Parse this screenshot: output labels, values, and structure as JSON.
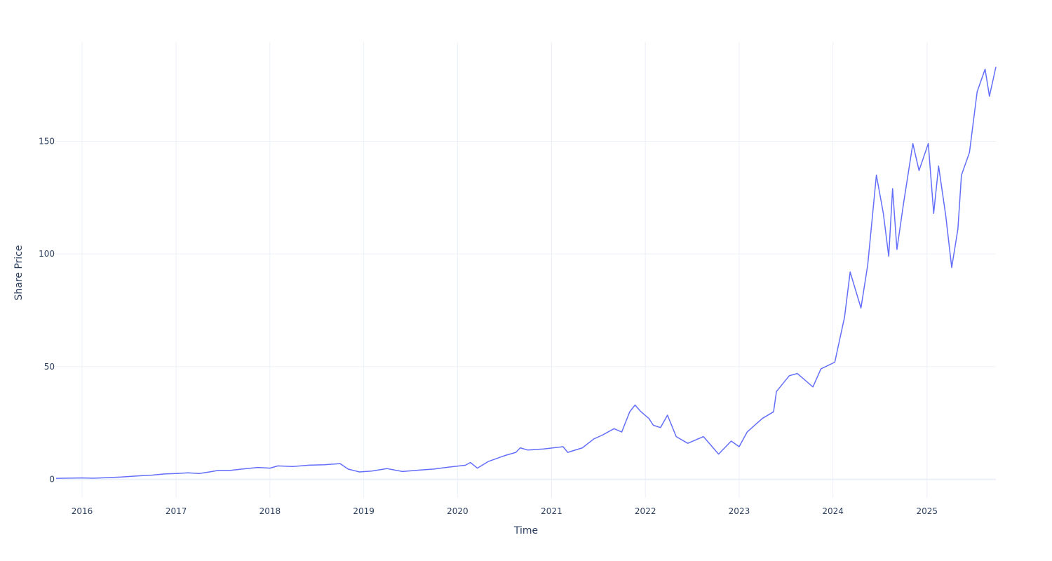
{
  "chart_data": {
    "type": "line",
    "title": "",
    "xlabel": "Time",
    "ylabel": "Share Price",
    "x_type": "date",
    "xlim": [
      "2015-09-22",
      "2025-09-26"
    ],
    "ylim": [
      -8.2,
      194
    ],
    "x_ticks": [
      "2016",
      "2017",
      "2018",
      "2019",
      "2020",
      "2021",
      "2022",
      "2023",
      "2024",
      "2025"
    ],
    "y_ticks": [
      0,
      50,
      100,
      150
    ],
    "grid": true,
    "legend": "none",
    "series": [
      {
        "color": "#636efa",
        "points": [
          [
            "2015-09-22",
            0.48
          ],
          [
            "2015-11-01",
            0.55
          ],
          [
            "2016-01-01",
            0.68
          ],
          [
            "2016-02-15",
            0.55
          ],
          [
            "2016-04-01",
            0.75
          ],
          [
            "2016-06-01",
            1.05
          ],
          [
            "2016-08-01",
            1.5
          ],
          [
            "2016-10-01",
            1.9
          ],
          [
            "2016-11-15",
            2.4
          ],
          [
            "2017-01-01",
            2.6
          ],
          [
            "2017-02-15",
            2.9
          ],
          [
            "2017-04-01",
            2.6
          ],
          [
            "2017-05-15",
            3.4
          ],
          [
            "2017-06-15",
            4.0
          ],
          [
            "2017-08-01",
            4.0
          ],
          [
            "2017-09-15",
            4.6
          ],
          [
            "2017-11-15",
            5.3
          ],
          [
            "2018-01-01",
            5.0
          ],
          [
            "2018-02-01",
            6.0
          ],
          [
            "2018-04-01",
            5.7
          ],
          [
            "2018-06-01",
            6.3
          ],
          [
            "2018-08-01",
            6.5
          ],
          [
            "2018-10-01",
            7.0
          ],
          [
            "2018-11-01",
            4.6
          ],
          [
            "2018-12-15",
            3.3
          ],
          [
            "2019-02-01",
            3.7
          ],
          [
            "2019-04-01",
            4.8
          ],
          [
            "2019-06-01",
            3.5
          ],
          [
            "2019-08-01",
            4.1
          ],
          [
            "2019-10-01",
            4.6
          ],
          [
            "2019-12-01",
            5.5
          ],
          [
            "2020-02-01",
            6.3
          ],
          [
            "2020-02-20",
            7.5
          ],
          [
            "2020-03-18",
            5.0
          ],
          [
            "2020-05-01",
            8.0
          ],
          [
            "2020-07-01",
            10.5
          ],
          [
            "2020-08-15",
            12.0
          ],
          [
            "2020-09-01",
            14.0
          ],
          [
            "2020-10-01",
            13.0
          ],
          [
            "2020-12-01",
            13.5
          ],
          [
            "2021-02-15",
            14.5
          ],
          [
            "2021-03-05",
            12.0
          ],
          [
            "2021-05-01",
            14.0
          ],
          [
            "2021-06-15",
            18.0
          ],
          [
            "2021-07-15",
            19.5
          ],
          [
            "2021-09-01",
            22.5
          ],
          [
            "2021-10-01",
            21.0
          ],
          [
            "2021-11-01",
            30.0
          ],
          [
            "2021-11-22",
            33.0
          ],
          [
            "2021-12-15",
            30.0
          ],
          [
            "2022-01-15",
            27.0
          ],
          [
            "2022-02-01",
            24.0
          ],
          [
            "2022-03-01",
            23.0
          ],
          [
            "2022-03-28",
            28.5
          ],
          [
            "2022-05-01",
            19.0
          ],
          [
            "2022-06-15",
            16.0
          ],
          [
            "2022-08-15",
            19.0
          ],
          [
            "2022-10-13",
            11.2
          ],
          [
            "2022-12-01",
            17.0
          ],
          [
            "2023-01-01",
            14.5
          ],
          [
            "2023-02-01",
            21.0
          ],
          [
            "2023-04-01",
            27.0
          ],
          [
            "2023-05-15",
            30.0
          ],
          [
            "2023-05-26",
            39.0
          ],
          [
            "2023-07-15",
            46.0
          ],
          [
            "2023-08-15",
            47.0
          ],
          [
            "2023-10-15",
            41.0
          ],
          [
            "2023-11-15",
            49.0
          ],
          [
            "2024-01-08",
            52.0
          ],
          [
            "2024-02-15",
            72.0
          ],
          [
            "2024-03-08",
            92.0
          ],
          [
            "2024-04-19",
            76.0
          ],
          [
            "2024-05-15",
            95.0
          ],
          [
            "2024-06-18",
            135.0
          ],
          [
            "2024-07-15",
            118.0
          ],
          [
            "2024-08-05",
            99.0
          ],
          [
            "2024-08-20",
            129.0
          ],
          [
            "2024-09-06",
            102.0
          ],
          [
            "2024-10-01",
            122.0
          ],
          [
            "2024-11-07",
            149.0
          ],
          [
            "2024-12-01",
            137.0
          ],
          [
            "2025-01-06",
            149.0
          ],
          [
            "2025-01-27",
            118.0
          ],
          [
            "2025-02-15",
            139.0
          ],
          [
            "2025-03-15",
            117.0
          ],
          [
            "2025-04-07",
            94.0
          ],
          [
            "2025-05-01",
            111.0
          ],
          [
            "2025-05-15",
            135.0
          ],
          [
            "2025-06-15",
            145.0
          ],
          [
            "2025-07-15",
            172.0
          ],
          [
            "2025-08-15",
            182.0
          ],
          [
            "2025-09-01",
            170.0
          ],
          [
            "2025-09-26",
            183.0
          ]
        ]
      }
    ]
  }
}
